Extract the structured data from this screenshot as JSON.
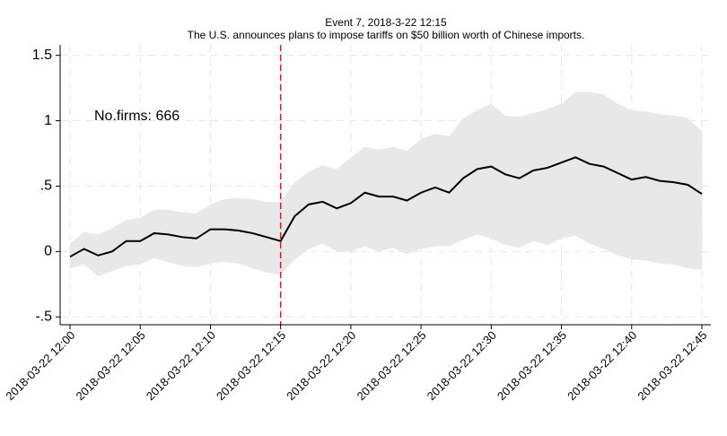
{
  "chart_data": {
    "type": "line",
    "title": "Event 7, 2018-3-22 12:15",
    "subtitle": "The U.S. announces plans to impose tariffs on $50 billion worth of Chinese imports.",
    "annotation": "No.firms: 666",
    "x": [
      "2018-03-22 12:00",
      "2018-03-22 12:01",
      "2018-03-22 12:02",
      "2018-03-22 12:03",
      "2018-03-22 12:04",
      "2018-03-22 12:05",
      "2018-03-22 12:06",
      "2018-03-22 12:07",
      "2018-03-22 12:08",
      "2018-03-22 12:09",
      "2018-03-22 12:10",
      "2018-03-22 12:11",
      "2018-03-22 12:12",
      "2018-03-22 12:13",
      "2018-03-22 12:14",
      "2018-03-22 12:15",
      "2018-03-22 12:16",
      "2018-03-22 12:17",
      "2018-03-22 12:18",
      "2018-03-22 12:19",
      "2018-03-22 12:20",
      "2018-03-22 12:21",
      "2018-03-22 12:22",
      "2018-03-22 12:23",
      "2018-03-22 12:24",
      "2018-03-22 12:25",
      "2018-03-22 12:26",
      "2018-03-22 12:27",
      "2018-03-22 12:28",
      "2018-03-22 12:29",
      "2018-03-22 12:30",
      "2018-03-22 12:31",
      "2018-03-22 12:32",
      "2018-03-22 12:33",
      "2018-03-22 12:34",
      "2018-03-22 12:35",
      "2018-03-22 12:36",
      "2018-03-22 12:37",
      "2018-03-22 12:38",
      "2018-03-22 12:39",
      "2018-03-22 12:40",
      "2018-03-22 12:41",
      "2018-03-22 12:42",
      "2018-03-22 12:43",
      "2018-03-22 12:44",
      "2018-03-22 12:45"
    ],
    "series": [
      {
        "color": "#000000",
        "values": [
          -0.04,
          0.02,
          -0.03,
          0.0,
          0.08,
          0.08,
          0.14,
          0.13,
          0.11,
          0.1,
          0.17,
          0.17,
          0.16,
          0.14,
          0.11,
          0.08,
          0.27,
          0.36,
          0.38,
          0.33,
          0.37,
          0.45,
          0.42,
          0.42,
          0.39,
          0.45,
          0.49,
          0.45,
          0.56,
          0.63,
          0.65,
          0.59,
          0.56,
          0.62,
          0.64,
          0.68,
          0.72,
          0.67,
          0.65,
          0.6,
          0.55,
          0.57,
          0.54,
          0.53,
          0.51,
          0.44
        ]
      }
    ],
    "band": {
      "color": "#e8e8e8",
      "upper": [
        0.06,
        0.15,
        0.13,
        0.18,
        0.24,
        0.26,
        0.32,
        0.32,
        0.3,
        0.29,
        0.36,
        0.4,
        0.41,
        0.4,
        0.38,
        0.38,
        0.53,
        0.61,
        0.66,
        0.63,
        0.72,
        0.8,
        0.78,
        0.8,
        0.77,
        0.86,
        0.9,
        0.88,
        1.02,
        1.08,
        1.13,
        1.04,
        1.03,
        1.06,
        1.09,
        1.13,
        1.22,
        1.22,
        1.2,
        1.13,
        1.08,
        1.07,
        1.05,
        1.04,
        1.02,
        0.92
      ],
      "lower": [
        -0.13,
        -0.1,
        -0.19,
        -0.15,
        -0.11,
        -0.1,
        -0.05,
        -0.08,
        -0.11,
        -0.12,
        -0.09,
        -0.08,
        -0.09,
        -0.13,
        -0.16,
        -0.18,
        -0.06,
        0.02,
        0.06,
        0.0,
        0.0,
        0.04,
        0.0,
        0.03,
        -0.02,
        0.02,
        0.04,
        0.04,
        0.09,
        0.13,
        0.1,
        0.05,
        0.03,
        0.08,
        0.05,
        0.1,
        0.12,
        0.06,
        0.02,
        -0.03,
        -0.06,
        -0.07,
        -0.09,
        -0.1,
        -0.13,
        -0.14
      ]
    },
    "event_line": {
      "x": "2018-03-22 12:15",
      "color": "#e8141c"
    },
    "ylim": [
      -0.56,
      1.58
    ],
    "yticks": [
      {
        "value": -0.5,
        "label": "-.5"
      },
      0,
      {
        "value": 0.5,
        "label": ".5"
      },
      1,
      1.5
    ],
    "x_label_every": 5,
    "grid": true
  }
}
